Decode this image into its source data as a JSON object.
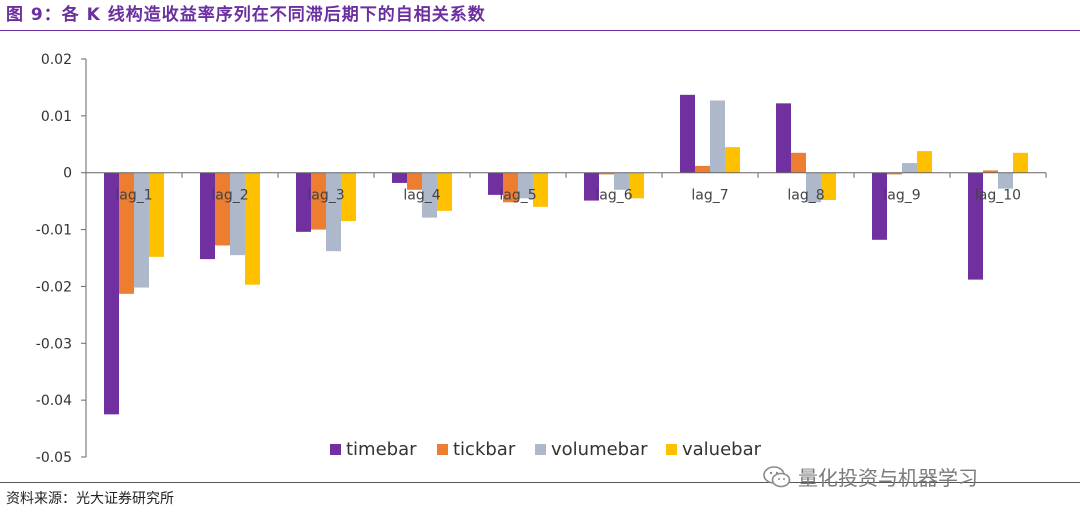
{
  "header": {
    "title": "图 9：各 K 线构造收益率序列在不同滞后期下的自相关系数"
  },
  "footer": {
    "source": "资料来源：光大证券研究所",
    "watermark": "量化投资与机器学习",
    "watermark_icon": "wechat-icon"
  },
  "colors": {
    "title": "#6b2fa0",
    "timebar": "#7030a0",
    "tickbar": "#ed7d31",
    "volumebar": "#adb9ca",
    "valuebar": "#ffc000"
  },
  "chart_data": {
    "type": "bar",
    "title": "",
    "xlabel": "",
    "ylabel": "",
    "ylim": [
      -0.05,
      0.02
    ],
    "yticks": [
      0.02,
      0.01,
      0,
      -0.01,
      -0.02,
      -0.03,
      -0.04,
      -0.05
    ],
    "ytick_labels": [
      "0.02",
      "0.01",
      "0",
      "-0.01",
      "-0.02",
      "-0.03",
      "-0.04",
      "-0.05"
    ],
    "grid": false,
    "legend_position": "bottom-center",
    "categories": [
      "lag_1",
      "lag_2",
      "lag_3",
      "lag_4",
      "lag_5",
      "lag_6",
      "lag_7",
      "lag_8",
      "lag_9",
      "lag_10"
    ],
    "series": [
      {
        "name": "timebar",
        "color": "#7030a0",
        "values": [
          -0.0425,
          -0.0152,
          -0.0104,
          -0.0018,
          -0.0039,
          -0.0049,
          0.0137,
          0.0122,
          -0.0118,
          -0.0188
        ]
      },
      {
        "name": "tickbar",
        "color": "#ed7d31",
        "values": [
          -0.0213,
          -0.0128,
          -0.01,
          -0.003,
          -0.0052,
          -0.0003,
          0.0012,
          0.0035,
          -0.0003,
          0.0004
        ]
      },
      {
        "name": "volumebar",
        "color": "#adb9ca",
        "values": [
          -0.0202,
          -0.0145,
          -0.0138,
          -0.0079,
          -0.0045,
          -0.003,
          0.0127,
          -0.0052,
          0.0017,
          -0.0028
        ]
      },
      {
        "name": "valuebar",
        "color": "#ffc000",
        "values": [
          -0.0148,
          -0.0197,
          -0.0085,
          -0.0067,
          -0.006,
          -0.0045,
          0.0045,
          -0.0048,
          0.0038,
          0.0035
        ]
      }
    ]
  }
}
